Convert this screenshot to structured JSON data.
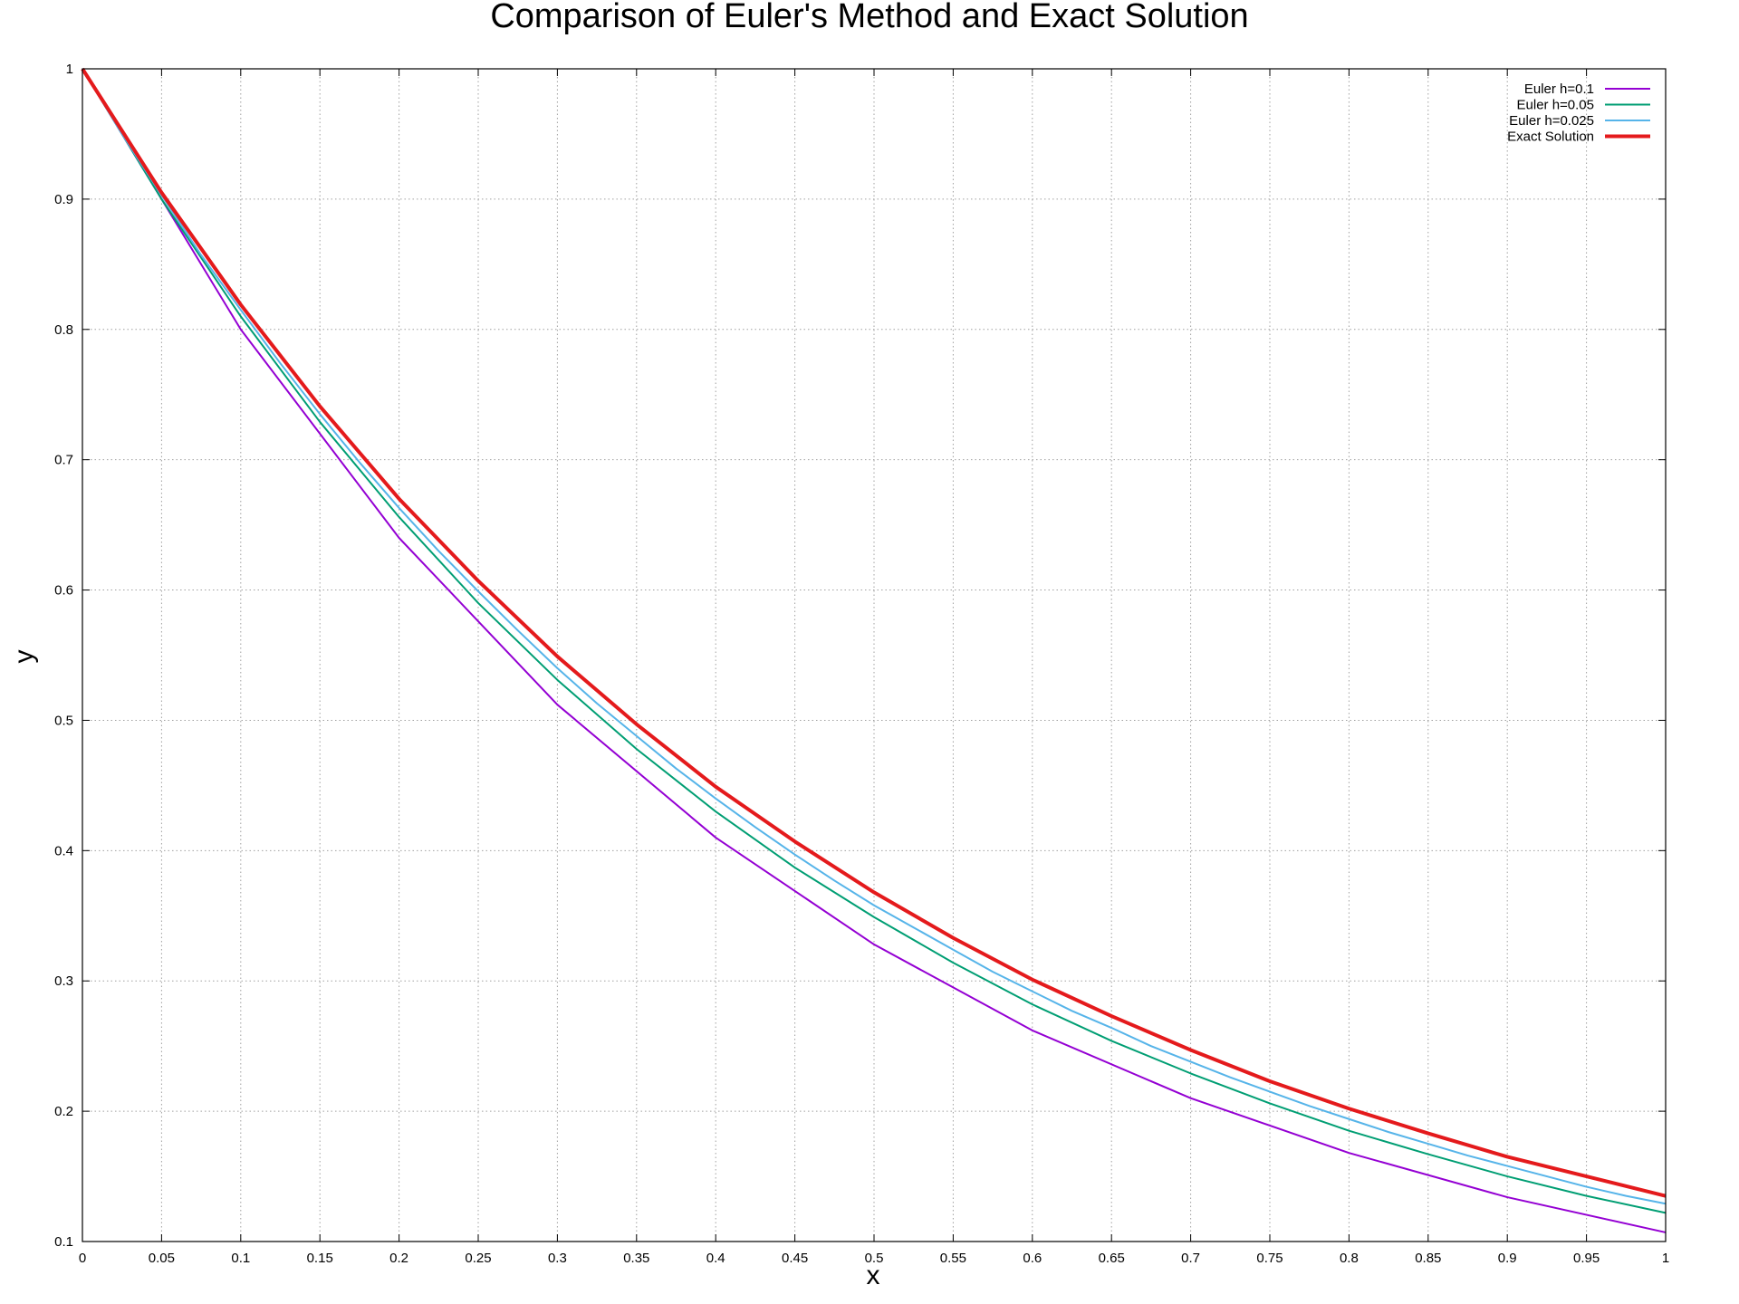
{
  "chart_data": {
    "type": "line",
    "title": "Comparison of Euler's Method and Exact Solution",
    "xlabel": "x",
    "ylabel": "y",
    "xlim": [
      0,
      1
    ],
    "ylim": [
      0.1,
      1
    ],
    "xticks": [
      0,
      0.05,
      0.1,
      0.15,
      0.2,
      0.25,
      0.3,
      0.35,
      0.4,
      0.45,
      0.5,
      0.55,
      0.6,
      0.65,
      0.7,
      0.75,
      0.8,
      0.85,
      0.9,
      0.95,
      1
    ],
    "yticks": [
      0.1,
      0.2,
      0.3,
      0.4,
      0.5,
      0.6,
      0.7,
      0.8,
      0.9,
      1
    ],
    "grid": true,
    "legend_position": "top-right",
    "series": [
      {
        "name": "Euler h=0.1",
        "color": "#9400d3",
        "x": [
          0,
          0.1,
          0.2,
          0.3,
          0.4,
          0.5,
          0.6,
          0.7,
          0.8,
          0.9,
          1.0
        ],
        "y": [
          1.0,
          0.8,
          0.64,
          0.512,
          0.41,
          0.328,
          0.262,
          0.21,
          0.168,
          0.134,
          0.107
        ]
      },
      {
        "name": "Euler h=0.05",
        "color": "#009e73",
        "x": [
          0,
          0.05,
          0.1,
          0.15,
          0.2,
          0.25,
          0.3,
          0.35,
          0.4,
          0.45,
          0.5,
          0.55,
          0.6,
          0.65,
          0.7,
          0.75,
          0.8,
          0.85,
          0.9,
          0.95,
          1.0
        ],
        "y": [
          1.0,
          0.9,
          0.81,
          0.729,
          0.656,
          0.59,
          0.531,
          0.478,
          0.43,
          0.387,
          0.349,
          0.314,
          0.282,
          0.254,
          0.229,
          0.206,
          0.185,
          0.167,
          0.15,
          0.135,
          0.122
        ]
      },
      {
        "name": "Euler h=0.025",
        "color": "#56b4e9",
        "x": [
          0,
          0.025,
          0.05,
          0.075,
          0.1,
          0.125,
          0.15,
          0.175,
          0.2,
          0.225,
          0.25,
          0.275,
          0.3,
          0.325,
          0.35,
          0.375,
          0.4,
          0.425,
          0.45,
          0.475,
          0.5,
          0.525,
          0.55,
          0.575,
          0.6,
          0.625,
          0.65,
          0.675,
          0.7,
          0.725,
          0.75,
          0.775,
          0.8,
          0.825,
          0.85,
          0.875,
          0.9,
          0.925,
          0.95,
          0.975,
          1.0
        ],
        "y": [
          1.0,
          0.95,
          0.903,
          0.857,
          0.815,
          0.774,
          0.735,
          0.698,
          0.663,
          0.63,
          0.599,
          0.569,
          0.54,
          0.513,
          0.488,
          0.463,
          0.44,
          0.418,
          0.397,
          0.377,
          0.358,
          0.341,
          0.324,
          0.307,
          0.292,
          0.277,
          0.264,
          0.25,
          0.238,
          0.226,
          0.215,
          0.204,
          0.194,
          0.184,
          0.175,
          0.166,
          0.158,
          0.15,
          0.142,
          0.135,
          0.129
        ]
      },
      {
        "name": "Exact Solution",
        "color": "#e41a1c",
        "x": [
          0,
          0.05,
          0.1,
          0.15,
          0.2,
          0.25,
          0.3,
          0.35,
          0.4,
          0.45,
          0.5,
          0.55,
          0.6,
          0.65,
          0.7,
          0.75,
          0.8,
          0.85,
          0.9,
          0.95,
          1.0
        ],
        "y": [
          1.0,
          0.905,
          0.819,
          0.741,
          0.67,
          0.607,
          0.549,
          0.497,
          0.449,
          0.407,
          0.368,
          0.333,
          0.301,
          0.273,
          0.247,
          0.223,
          0.202,
          0.183,
          0.165,
          0.15,
          0.135
        ]
      }
    ]
  }
}
